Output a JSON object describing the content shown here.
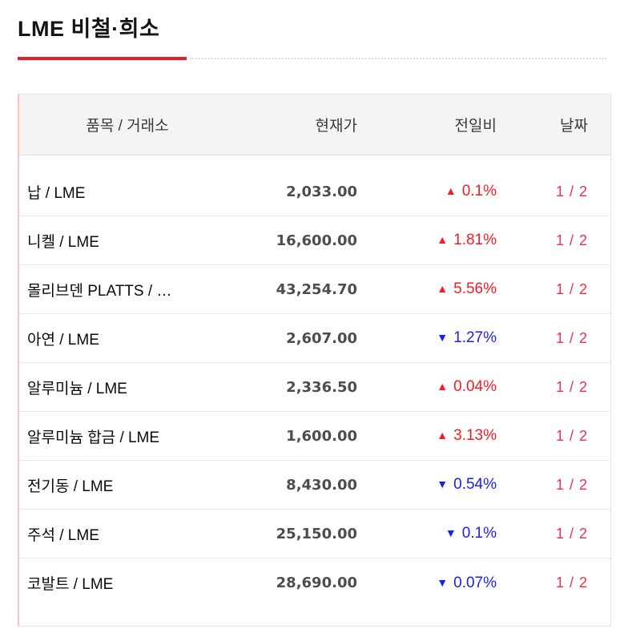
{
  "page": {
    "title": "LME 비철·희소"
  },
  "colors": {
    "accent_red": "#e32028",
    "up_red": "#f81a22",
    "down_blue": "#1c1cf5",
    "date_red": "#e8304e",
    "price_gray": "#4d4d4d"
  },
  "icons": {
    "up": "▲",
    "down": "▼"
  },
  "table": {
    "headers": [
      "품목 / 거래소",
      "현재가",
      "전일비",
      "날짜"
    ],
    "rows": [
      {
        "name": "납 / LME",
        "price": "2,033.00",
        "direction": "up",
        "change": "0.1%",
        "date": "1 / 2"
      },
      {
        "name": "니켈 / LME",
        "price": "16,600.00",
        "direction": "up",
        "change": "1.81%",
        "date": "1 / 2"
      },
      {
        "name": "몰리브덴 PLATTS / …",
        "price": "43,254.70",
        "direction": "up",
        "change": "5.56%",
        "date": "1 / 2"
      },
      {
        "name": "아연 / LME",
        "price": "2,607.00",
        "direction": "down",
        "change": "1.27%",
        "date": "1 / 2"
      },
      {
        "name": "알루미늄 / LME",
        "price": "2,336.50",
        "direction": "up",
        "change": "0.04%",
        "date": "1 / 2"
      },
      {
        "name": "알루미늄 합금 / LME",
        "price": "1,600.00",
        "direction": "up",
        "change": "3.13%",
        "date": "1 / 2"
      },
      {
        "name": "전기동 / LME",
        "price": "8,430.00",
        "direction": "down",
        "change": "0.54%",
        "date": "1 / 2"
      },
      {
        "name": "주석 / LME",
        "price": "25,150.00",
        "direction": "down",
        "change": "0.1%",
        "date": "1 / 2"
      },
      {
        "name": "코발트 / LME",
        "price": "28,690.00",
        "direction": "down",
        "change": "0.07%",
        "date": "1 / 2"
      }
    ]
  }
}
